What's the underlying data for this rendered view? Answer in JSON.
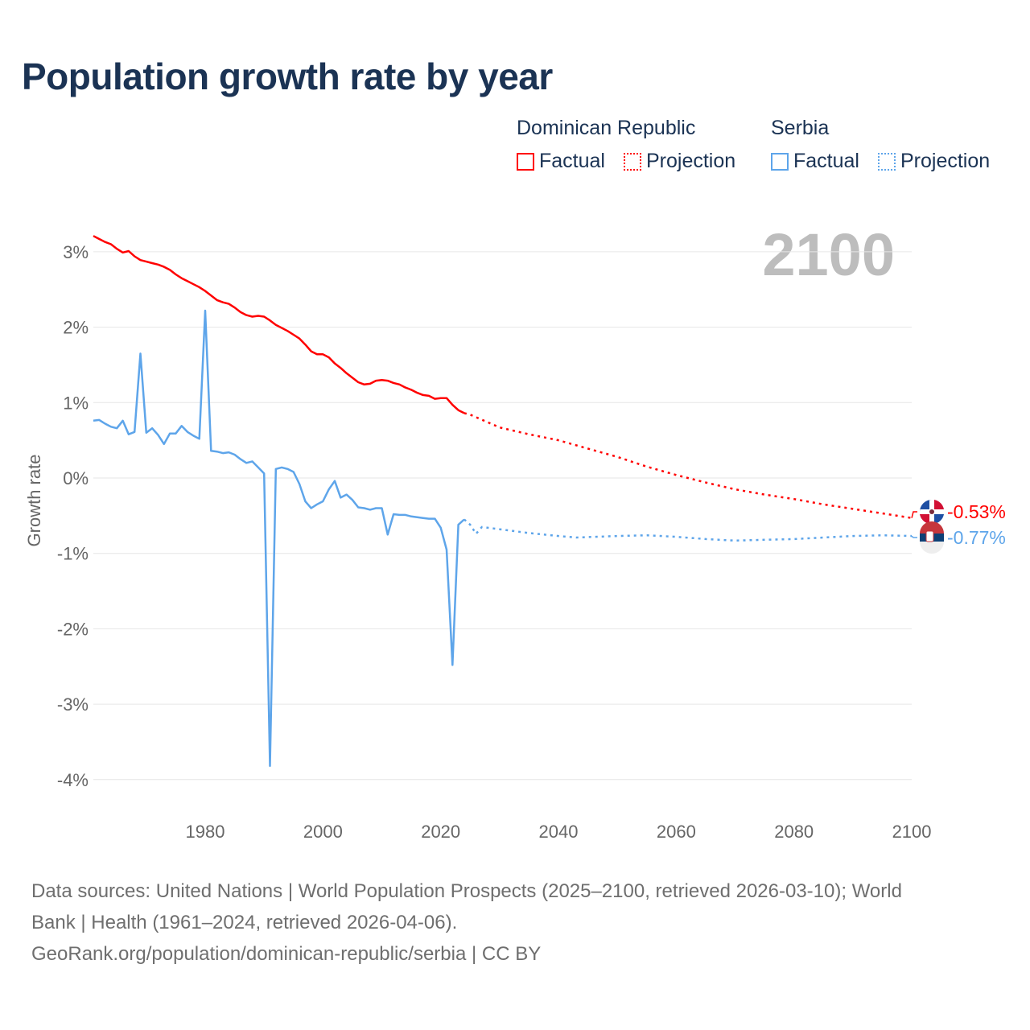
{
  "title": "Population growth rate by year",
  "legend": {
    "groups": [
      {
        "name": "Dominican Republic",
        "color": "#ff0000",
        "factual": "Factual",
        "projection": "Projection"
      },
      {
        "name": "Serbia",
        "color": "#5ea5ea",
        "factual": "Factual",
        "projection": "Projection"
      }
    ]
  },
  "year_watermark": "2100",
  "footer": {
    "line1": "Data sources: United Nations | World Population Prospects (2025–2100, retrieved 2026-03-10); World",
    "line2": "Bank | Health (1961–2024, retrieved 2026-04-06).",
    "line3": "GeoRank.org/population/dominican-republic/serbia | CC BY"
  },
  "chart_data": {
    "type": "line",
    "title": "Population growth rate by year",
    "xlabel": "",
    "ylabel": "Growth rate",
    "xlim": [
      1961,
      2100
    ],
    "ylim": [
      -4.3,
      3.4
    ],
    "x_ticks": [
      "1980",
      "2000",
      "2020",
      "2040",
      "2060",
      "2080",
      "2100"
    ],
    "y_ticks": [
      "3%",
      "2%",
      "1%",
      "0%",
      "-1%",
      "-2%",
      "-3%",
      "-4%"
    ],
    "grid": true,
    "legend_position": "top-right",
    "end_labels": [
      "-0.53%",
      "-0.77%"
    ],
    "series": [
      {
        "name": "Dominican Republic",
        "color": "#ff0000",
        "factual": {
          "x": [
            1961,
            1962,
            1963,
            1964,
            1965,
            1966,
            1967,
            1968,
            1969,
            1970,
            1971,
            1972,
            1973,
            1974,
            1975,
            1976,
            1977,
            1978,
            1979,
            1980,
            1981,
            1982,
            1983,
            1984,
            1985,
            1986,
            1987,
            1988,
            1989,
            1990,
            1991,
            1992,
            1993,
            1994,
            1995,
            1996,
            1997,
            1998,
            1999,
            2000,
            2001,
            2002,
            2003,
            2004,
            2005,
            2006,
            2007,
            2008,
            2009,
            2010,
            2011,
            2012,
            2013,
            2014,
            2015,
            2016,
            2017,
            2018,
            2019,
            2020,
            2021,
            2022,
            2023,
            2024
          ],
          "y": [
            3.21,
            3.17,
            3.13,
            3.1,
            3.04,
            2.99,
            3.01,
            2.94,
            2.89,
            2.87,
            2.85,
            2.83,
            2.8,
            2.76,
            2.7,
            2.65,
            2.61,
            2.57,
            2.53,
            2.48,
            2.42,
            2.36,
            2.33,
            2.31,
            2.26,
            2.2,
            2.16,
            2.14,
            2.15,
            2.14,
            2.09,
            2.03,
            1.99,
            1.95,
            1.9,
            1.85,
            1.77,
            1.68,
            1.64,
            1.64,
            1.6,
            1.52,
            1.46,
            1.39,
            1.33,
            1.27,
            1.24,
            1.25,
            1.29,
            1.3,
            1.29,
            1.26,
            1.24,
            1.2,
            1.17,
            1.13,
            1.1,
            1.09,
            1.05,
            1.06,
            1.06,
            0.97,
            0.9,
            0.86
          ]
        },
        "projection": {
          "x": [
            2024,
            2025,
            2030,
            2035,
            2040,
            2045,
            2050,
            2055,
            2060,
            2065,
            2070,
            2075,
            2080,
            2085,
            2090,
            2095,
            2100
          ],
          "y": [
            0.86,
            0.84,
            0.67,
            0.58,
            0.5,
            0.39,
            0.28,
            0.15,
            0.04,
            -0.06,
            -0.15,
            -0.22,
            -0.28,
            -0.35,
            -0.41,
            -0.47,
            -0.53
          ]
        }
      },
      {
        "name": "Serbia",
        "color": "#5ea5ea",
        "factual": {
          "x": [
            1961,
            1962,
            1963,
            1964,
            1965,
            1966,
            1967,
            1968,
            1969,
            1970,
            1971,
            1972,
            1973,
            1974,
            1975,
            1976,
            1977,
            1978,
            1979,
            1980,
            1981,
            1982,
            1983,
            1984,
            1985,
            1986,
            1987,
            1988,
            1989,
            1990,
            1991,
            1992,
            1993,
            1994,
            1995,
            1996,
            1997,
            1998,
            1999,
            2000,
            2001,
            2002,
            2003,
            2004,
            2005,
            2006,
            2007,
            2008,
            2009,
            2010,
            2011,
            2012,
            2013,
            2014,
            2015,
            2016,
            2017,
            2018,
            2019,
            2020,
            2021,
            2022,
            2023,
            2024
          ],
          "y": [
            0.76,
            0.77,
            0.72,
            0.68,
            0.66,
            0.76,
            0.58,
            0.61,
            1.65,
            0.6,
            0.66,
            0.57,
            0.45,
            0.59,
            0.59,
            0.69,
            0.61,
            0.56,
            0.52,
            2.22,
            0.36,
            0.35,
            0.33,
            0.34,
            0.31,
            0.25,
            0.2,
            0.22,
            0.14,
            0.06,
            -3.82,
            0.12,
            0.14,
            0.12,
            0.08,
            -0.08,
            -0.31,
            -0.4,
            -0.35,
            -0.31,
            -0.15,
            -0.04,
            -0.26,
            -0.22,
            -0.29,
            -0.39,
            -0.4,
            -0.42,
            -0.4,
            -0.4,
            -0.75,
            -0.48,
            -0.49,
            -0.49,
            -0.51,
            -0.52,
            -0.53,
            -0.54,
            -0.54,
            -0.66,
            -0.95,
            -2.48,
            -0.62,
            -0.55
          ]
        },
        "projection": {
          "x": [
            2024,
            2025,
            2026,
            2027,
            2030,
            2035,
            2040,
            2043,
            2050,
            2055,
            2060,
            2065,
            2070,
            2075,
            2080,
            2085,
            2090,
            2095,
            2100
          ],
          "y": [
            -0.55,
            -0.62,
            -0.74,
            -0.65,
            -0.68,
            -0.73,
            -0.77,
            -0.79,
            -0.77,
            -0.76,
            -0.78,
            -0.81,
            -0.83,
            -0.82,
            -0.81,
            -0.79,
            -0.77,
            -0.76,
            -0.77
          ]
        }
      }
    ]
  }
}
